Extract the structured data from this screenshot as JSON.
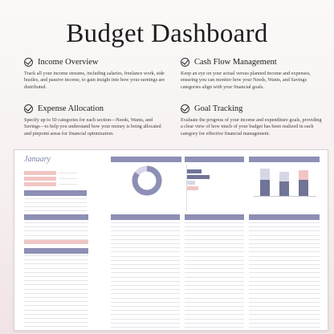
{
  "title": "Budget Dashboard",
  "features": [
    {
      "heading": "Income Overview",
      "description": "Track all your income streams, including salaries, freelance work, side hustles, and passive income, to gain insight into how your earnings are distributed.",
      "icon": "check-circle-icon"
    },
    {
      "heading": "Cash Flow Management",
      "description": "Keep an eye on your actual versus planned income and expenses, ensuring you can monitor how your Needs, Wants, and Savings categories align with your financial goals.",
      "icon": "check-circle-icon"
    },
    {
      "heading": "Expense Allocation",
      "description": "Specify up to 50 categories for each section—Needs, Wants, and Savings—to help you understand how your money is being allocated and pinpoint areas for financial optimization.",
      "icon": "check-circle-icon"
    },
    {
      "heading": "Goal Tracking",
      "description": "Evaluate the progress of your income and expenditure goals, providing a clear view of how much of your budget has been realized in each category for effective financial management.",
      "icon": "check-circle-icon"
    }
  ],
  "sheet": {
    "month": "January",
    "colors": {
      "header": "#8d8fb5",
      "accent_pink": "#f0c6c3",
      "donut_main": "#8d8fb5",
      "donut_light": "#d9d6e8",
      "bar_dark": "#707496",
      "bar_light": "#d6d7e6",
      "bar_pink": "#f0c6c3"
    }
  }
}
